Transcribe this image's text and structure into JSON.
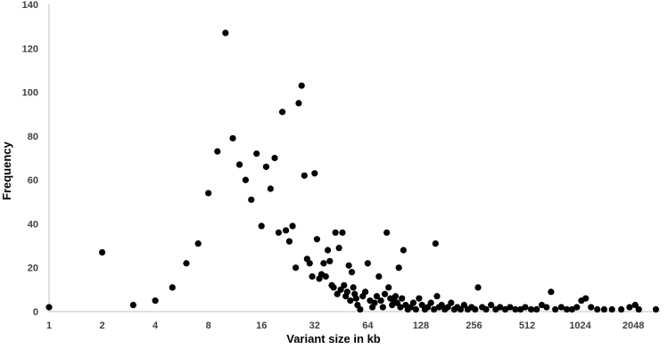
{
  "colors": {
    "point": "#000000",
    "axis": "#bfbfbf",
    "tick_text": "#404040"
  },
  "chart_data": {
    "type": "scatter",
    "title": "",
    "xlabel": "Variant size in kb",
    "ylabel": "Frequency",
    "x_scale": "log2",
    "xlim": [
      1,
      2900
    ],
    "ylim": [
      0,
      140
    ],
    "grid": false,
    "legend": "none",
    "x_ticks": [
      {
        "value": 1,
        "label": "1"
      },
      {
        "value": 2,
        "label": "2"
      },
      {
        "value": 4,
        "label": "4"
      },
      {
        "value": 8,
        "label": "8"
      },
      {
        "value": 16,
        "label": "16"
      },
      {
        "value": 32,
        "label": "32"
      },
      {
        "value": 64,
        "label": "64"
      },
      {
        "value": 128,
        "label": "128"
      },
      {
        "value": 256,
        "label": "256"
      },
      {
        "value": 512,
        "label": "512"
      },
      {
        "value": 1024,
        "label": "1024"
      },
      {
        "value": 2048,
        "label": "2048"
      }
    ],
    "y_ticks": [
      {
        "value": 0,
        "label": "0"
      },
      {
        "value": 20,
        "label": "20"
      },
      {
        "value": 40,
        "label": "40"
      },
      {
        "value": 60,
        "label": "60"
      },
      {
        "value": 80,
        "label": "80"
      },
      {
        "value": 100,
        "label": "100"
      },
      {
        "value": 120,
        "label": "120"
      },
      {
        "value": 140,
        "label": "140"
      }
    ],
    "points": [
      {
        "x": 1,
        "y": 2
      },
      {
        "x": 2,
        "y": 27
      },
      {
        "x": 3,
        "y": 3
      },
      {
        "x": 4,
        "y": 5
      },
      {
        "x": 5,
        "y": 11
      },
      {
        "x": 6,
        "y": 22
      },
      {
        "x": 7,
        "y": 31
      },
      {
        "x": 8,
        "y": 54
      },
      {
        "x": 9,
        "y": 73
      },
      {
        "x": 10,
        "y": 127
      },
      {
        "x": 11,
        "y": 79
      },
      {
        "x": 12,
        "y": 67
      },
      {
        "x": 13,
        "y": 60
      },
      {
        "x": 14,
        "y": 51
      },
      {
        "x": 15,
        "y": 72
      },
      {
        "x": 16,
        "y": 39
      },
      {
        "x": 17,
        "y": 66
      },
      {
        "x": 18,
        "y": 56
      },
      {
        "x": 19,
        "y": 70
      },
      {
        "x": 20,
        "y": 36
      },
      {
        "x": 21,
        "y": 91
      },
      {
        "x": 22,
        "y": 37
      },
      {
        "x": 23,
        "y": 32
      },
      {
        "x": 24,
        "y": 39
      },
      {
        "x": 25,
        "y": 20
      },
      {
        "x": 26,
        "y": 95
      },
      {
        "x": 27,
        "y": 103
      },
      {
        "x": 28,
        "y": 62
      },
      {
        "x": 29,
        "y": 24
      },
      {
        "x": 30,
        "y": 22
      },
      {
        "x": 31,
        "y": 16
      },
      {
        "x": 32,
        "y": 63
      },
      {
        "x": 33,
        "y": 33
      },
      {
        "x": 34,
        "y": 15
      },
      {
        "x": 35,
        "y": 17
      },
      {
        "x": 36,
        "y": 22
      },
      {
        "x": 37,
        "y": 16
      },
      {
        "x": 38,
        "y": 28
      },
      {
        "x": 39,
        "y": 23
      },
      {
        "x": 40,
        "y": 12
      },
      {
        "x": 41,
        "y": 11
      },
      {
        "x": 42,
        "y": 36
      },
      {
        "x": 43,
        "y": 8
      },
      {
        "x": 44,
        "y": 29
      },
      {
        "x": 45,
        "y": 10
      },
      {
        "x": 46,
        "y": 36
      },
      {
        "x": 47,
        "y": 12
      },
      {
        "x": 48,
        "y": 7
      },
      {
        "x": 49,
        "y": 9
      },
      {
        "x": 50,
        "y": 21
      },
      {
        "x": 51,
        "y": 5
      },
      {
        "x": 52,
        "y": 18
      },
      {
        "x": 53,
        "y": 11
      },
      {
        "x": 54,
        "y": 8
      },
      {
        "x": 55,
        "y": 6
      },
      {
        "x": 56,
        "y": 3
      },
      {
        "x": 58,
        "y": 1
      },
      {
        "x": 60,
        "y": 7
      },
      {
        "x": 62,
        "y": 9
      },
      {
        "x": 64,
        "y": 22
      },
      {
        "x": 66,
        "y": 5
      },
      {
        "x": 68,
        "y": 2
      },
      {
        "x": 70,
        "y": 4
      },
      {
        "x": 72,
        "y": 7
      },
      {
        "x": 74,
        "y": 16
      },
      {
        "x": 76,
        "y": 5
      },
      {
        "x": 78,
        "y": 2
      },
      {
        "x": 80,
        "y": 8
      },
      {
        "x": 82,
        "y": 36
      },
      {
        "x": 84,
        "y": 11
      },
      {
        "x": 86,
        "y": 6
      },
      {
        "x": 88,
        "y": 3
      },
      {
        "x": 90,
        "y": 5
      },
      {
        "x": 92,
        "y": 7
      },
      {
        "x": 94,
        "y": 4
      },
      {
        "x": 96,
        "y": 20
      },
      {
        "x": 98,
        "y": 2
      },
      {
        "x": 100,
        "y": 6
      },
      {
        "x": 102,
        "y": 28
      },
      {
        "x": 105,
        "y": 3
      },
      {
        "x": 108,
        "y": 1
      },
      {
        "x": 112,
        "y": 2
      },
      {
        "x": 116,
        "y": 4
      },
      {
        "x": 120,
        "y": 1
      },
      {
        "x": 125,
        "y": 6
      },
      {
        "x": 130,
        "y": 3
      },
      {
        "x": 135,
        "y": 1
      },
      {
        "x": 140,
        "y": 2
      },
      {
        "x": 146,
        "y": 4
      },
      {
        "x": 152,
        "y": 1
      },
      {
        "x": 155,
        "y": 31
      },
      {
        "x": 158,
        "y": 7
      },
      {
        "x": 162,
        "y": 2
      },
      {
        "x": 168,
        "y": 3
      },
      {
        "x": 175,
        "y": 1
      },
      {
        "x": 182,
        "y": 2
      },
      {
        "x": 190,
        "y": 4
      },
      {
        "x": 198,
        "y": 1
      },
      {
        "x": 206,
        "y": 2
      },
      {
        "x": 215,
        "y": 1
      },
      {
        "x": 225,
        "y": 3
      },
      {
        "x": 236,
        "y": 1
      },
      {
        "x": 248,
        "y": 2
      },
      {
        "x": 260,
        "y": 1
      },
      {
        "x": 270,
        "y": 11
      },
      {
        "x": 285,
        "y": 2
      },
      {
        "x": 300,
        "y": 1
      },
      {
        "x": 320,
        "y": 3
      },
      {
        "x": 340,
        "y": 1
      },
      {
        "x": 360,
        "y": 2
      },
      {
        "x": 385,
        "y": 1
      },
      {
        "x": 410,
        "y": 2
      },
      {
        "x": 440,
        "y": 1
      },
      {
        "x": 470,
        "y": 1
      },
      {
        "x": 500,
        "y": 2
      },
      {
        "x": 540,
        "y": 1
      },
      {
        "x": 580,
        "y": 1
      },
      {
        "x": 620,
        "y": 3
      },
      {
        "x": 660,
        "y": 2
      },
      {
        "x": 700,
        "y": 9
      },
      {
        "x": 740,
        "y": 1
      },
      {
        "x": 800,
        "y": 2
      },
      {
        "x": 860,
        "y": 1
      },
      {
        "x": 920,
        "y": 1
      },
      {
        "x": 980,
        "y": 2
      },
      {
        "x": 1040,
        "y": 5
      },
      {
        "x": 1100,
        "y": 6
      },
      {
        "x": 1180,
        "y": 2
      },
      {
        "x": 1280,
        "y": 1
      },
      {
        "x": 1400,
        "y": 1
      },
      {
        "x": 1550,
        "y": 1
      },
      {
        "x": 1750,
        "y": 1
      },
      {
        "x": 1950,
        "y": 2
      },
      {
        "x": 2100,
        "y": 3
      },
      {
        "x": 2200,
        "y": 1
      },
      {
        "x": 2750,
        "y": 1
      }
    ]
  }
}
